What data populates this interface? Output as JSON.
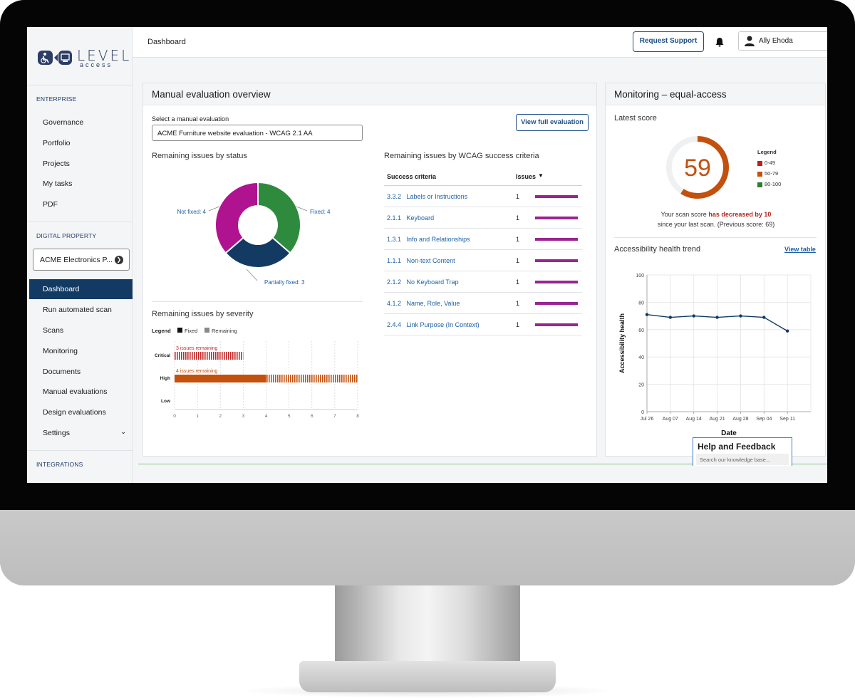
{
  "header": {
    "title": "Dashboard",
    "support_label": "Request Support",
    "user_name": "Ally Ehoda"
  },
  "sidebar": {
    "logo_text": "LEVEL",
    "logo_sub": "access",
    "enterprise_heading": "ENTERPRISE",
    "enterprise_items": [
      "Governance",
      "Portfolio",
      "Projects",
      "My tasks",
      "PDF"
    ],
    "digital_heading": "DIGITAL PROPERTY",
    "property_selected": "ACME Electronics P...",
    "digital_items": [
      "Dashboard",
      "Run automated scan",
      "Scans",
      "Monitoring",
      "Documents",
      "Manual evaluations",
      "Design evaluations",
      "Settings"
    ],
    "active_item": "Dashboard",
    "integrations_heading": "INTEGRATIONS"
  },
  "manual": {
    "title": "Manual evaluation overview",
    "select_label": "Select a manual evaluation",
    "select_value": "ACME Furniture website evaluation - WCAG 2.1 AA",
    "view_full_label": "View full evaluation",
    "status_title": "Remaining issues by status",
    "wcag_title": "Remaining issues by WCAG success criteria",
    "severity_title": "Remaining issues by severity"
  },
  "status_chart": {
    "type": "pie",
    "slices": [
      {
        "label": "Fixed: 4",
        "value": 4,
        "color": "#2e8b3e"
      },
      {
        "label": "Partially fixed: 3",
        "value": 3,
        "color": "#123a63"
      },
      {
        "label": "Not fixed: 4",
        "value": 4,
        "color": "#b0138f"
      }
    ]
  },
  "wcag_table": {
    "col_criteria": "Success criteria",
    "col_issues": "Issues",
    "rows": [
      {
        "id": "3.3.2",
        "name": "Labels or Instructions",
        "issues": 1
      },
      {
        "id": "2.1.1",
        "name": "Keyboard",
        "issues": 1
      },
      {
        "id": "1.3.1",
        "name": "Info and Relationships",
        "issues": 1
      },
      {
        "id": "1.1.1",
        "name": "Non-text Content",
        "issues": 1
      },
      {
        "id": "2.1.2",
        "name": "No Keyboard Trap",
        "issues": 1
      },
      {
        "id": "4.1.2",
        "name": "Name, Role, Value",
        "issues": 1
      },
      {
        "id": "2.4.4",
        "name": "Link Purpose (In Context)",
        "issues": 1
      }
    ]
  },
  "severity_chart": {
    "type": "bar",
    "legend_label": "Legend",
    "legend": [
      "Fixed",
      "Remaining"
    ],
    "categories": [
      "Critical",
      "High",
      "Low"
    ],
    "series": [
      {
        "name": "Fixed",
        "values": [
          0,
          4,
          0
        ]
      },
      {
        "name": "Remaining",
        "values": [
          3,
          4,
          0
        ]
      }
    ],
    "annotations": [
      "3 issues remaining",
      "4 issues remaining"
    ],
    "xticks": [
      "0",
      "1",
      "2",
      "3",
      "4",
      "5",
      "6",
      "7",
      "8"
    ],
    "xlim": [
      0,
      8
    ],
    "colors": {
      "critical": "#c42a2a",
      "high": "#c4500e"
    }
  },
  "monitoring": {
    "title": "Monitoring – equal-access",
    "latest_score_label": "Latest score",
    "score": "59",
    "score_value": 59,
    "legend_title": "Legend",
    "legend": [
      {
        "label": "0-49",
        "color": "#c41c1c"
      },
      {
        "label": "50-79",
        "color": "#c4500e"
      },
      {
        "label": "80-100",
        "color": "#2e7d32"
      }
    ],
    "msg_prefix": "Your scan score",
    "msg_highlight": "has decreased by 10",
    "msg_line2": "since your last scan. (Previous score: 69)",
    "trend_title": "Accessibility health trend",
    "view_table_label": "View table"
  },
  "trend_chart": {
    "type": "line",
    "x": [
      "Jul 26",
      "Aug 07",
      "Aug 14",
      "Aug 21",
      "Aug 28",
      "Sep 04",
      "Sep 11"
    ],
    "values": [
      71,
      69,
      70,
      69,
      70,
      69,
      59
    ],
    "ylabel": "Accessibility health",
    "xlabel": "Date",
    "ylim": [
      0,
      100
    ],
    "yticks": [
      "0",
      "20",
      "40",
      "60",
      "80",
      "100"
    ],
    "grid": true
  },
  "help": {
    "title": "Help and Feedback",
    "search_placeholder": "Search our knowledge base..."
  }
}
